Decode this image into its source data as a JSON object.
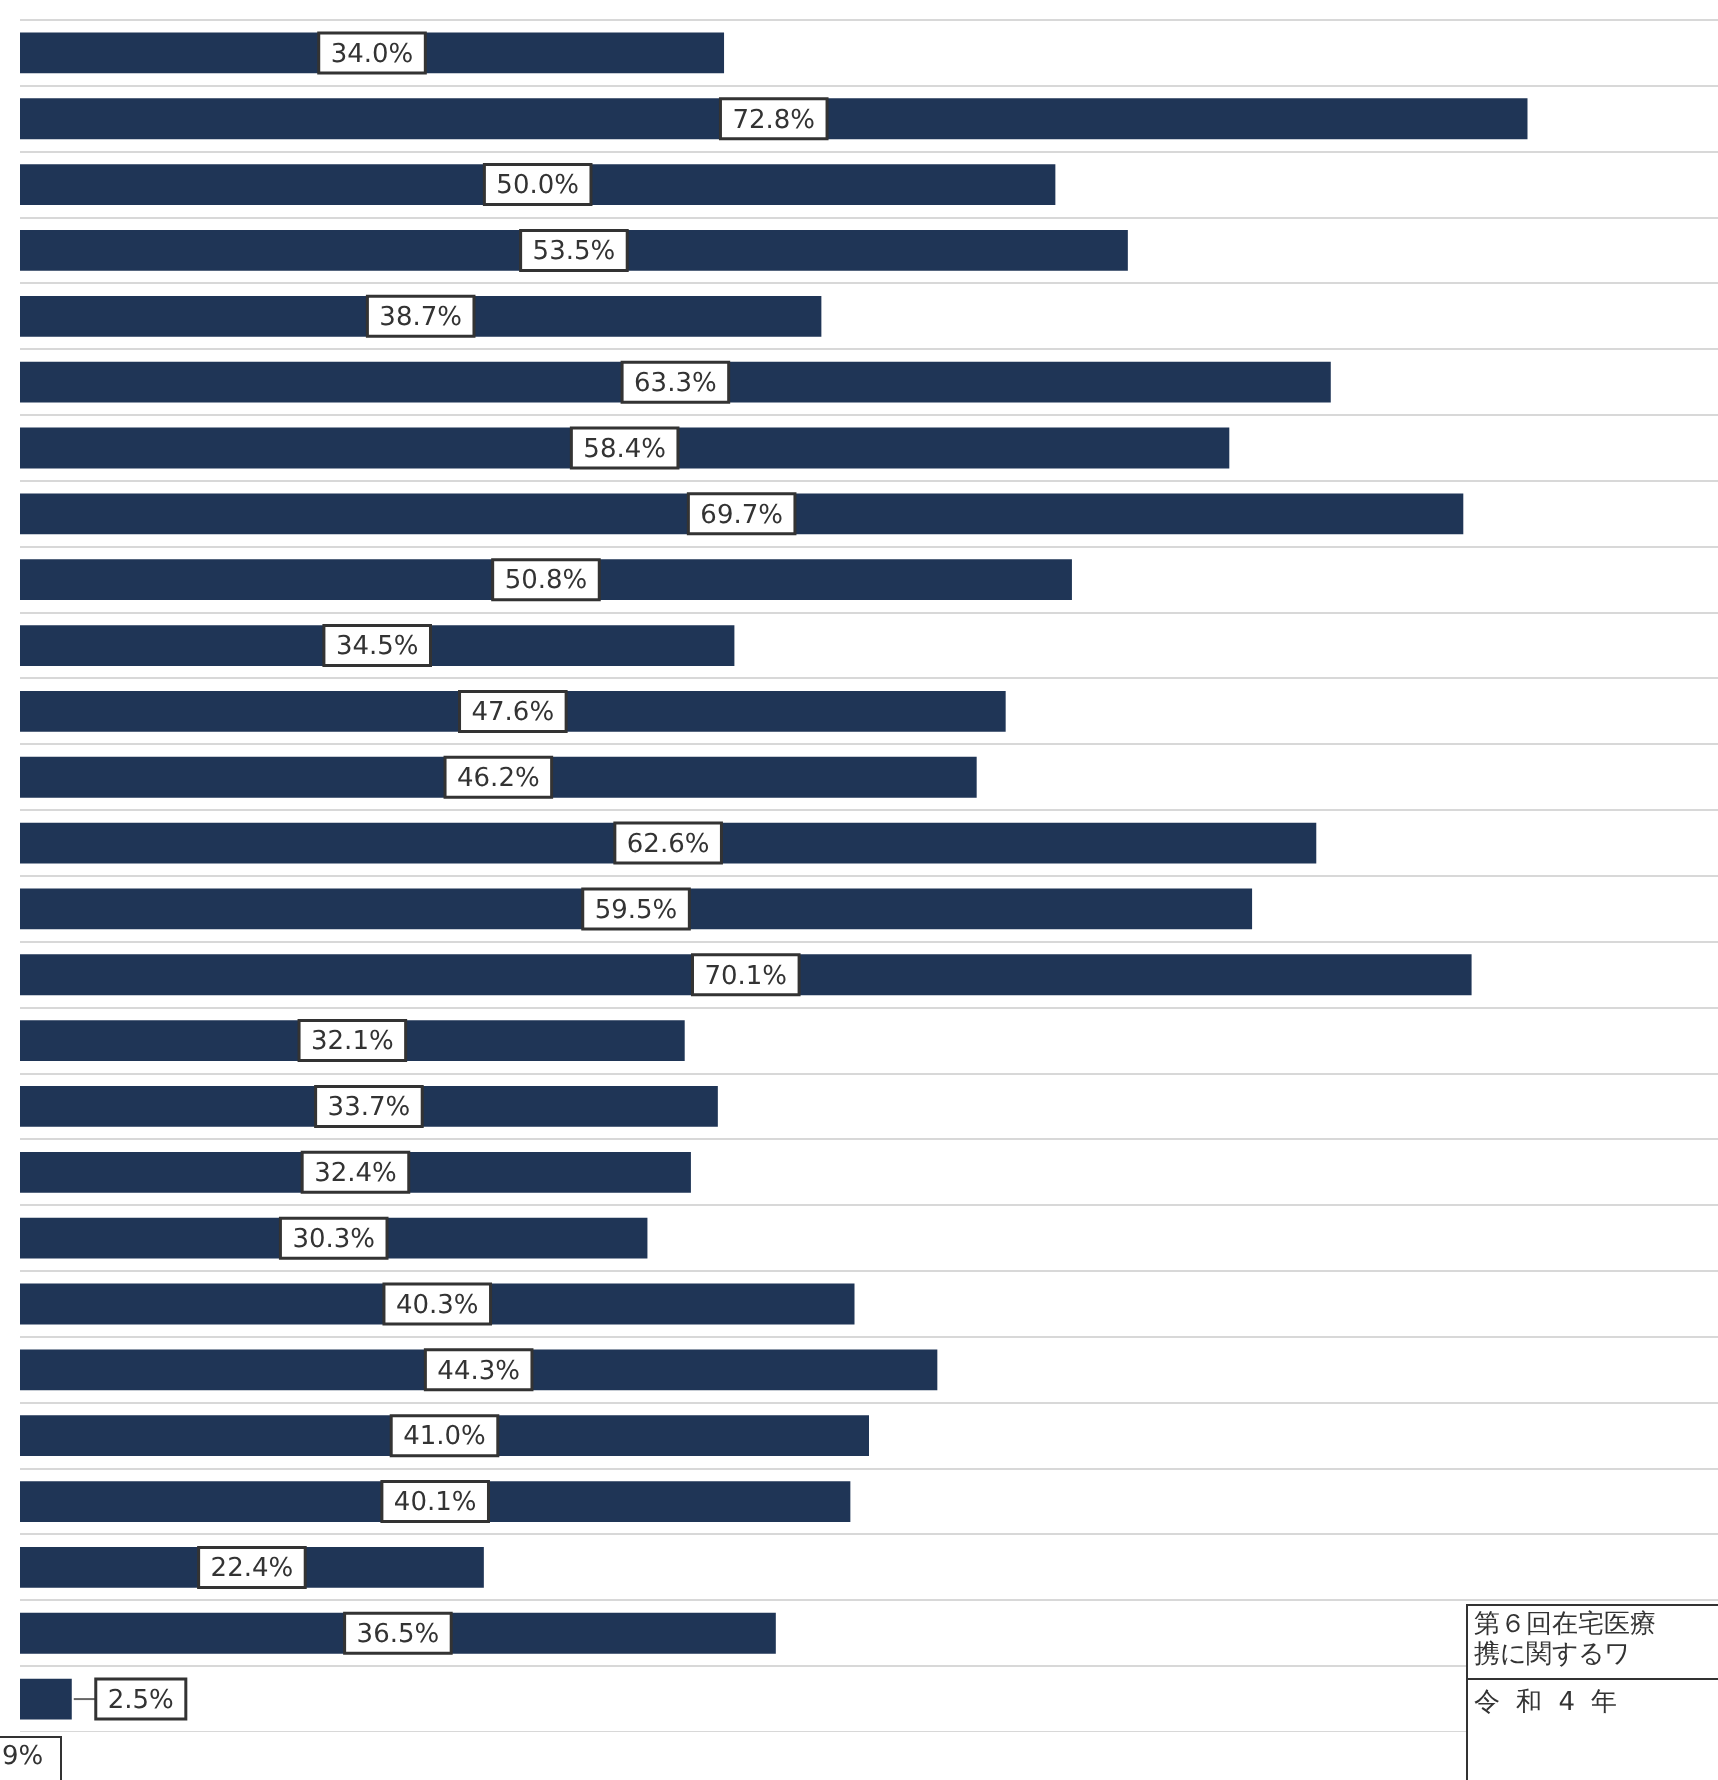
{
  "chart_data": {
    "type": "bar",
    "orientation": "horizontal",
    "categories": [
      null,
      null,
      null,
      null,
      null,
      null,
      null,
      null,
      null,
      null,
      null,
      null,
      null,
      null,
      null,
      null,
      null,
      null,
      null,
      null,
      null,
      null,
      null,
      null,
      null,
      null
    ],
    "values": [
      34.0,
      72.8,
      50.0,
      53.5,
      38.7,
      63.3,
      58.4,
      69.7,
      50.8,
      34.5,
      47.6,
      46.2,
      62.6,
      59.5,
      70.1,
      32.1,
      33.7,
      32.4,
      30.3,
      40.3,
      44.3,
      41.0,
      40.1,
      22.4,
      36.5,
      2.5
    ],
    "value_labels": [
      "34.0%",
      "72.8%",
      "50.0%",
      "53.5%",
      "38.7%",
      "63.3%",
      "58.4%",
      "69.7%",
      "50.8%",
      "34.5%",
      "47.6%",
      "46.2%",
      "62.6%",
      "59.5%",
      "70.1%",
      "32.1%",
      "33.7%",
      "32.4%",
      "30.3%",
      "40.3%",
      "44.3%",
      "41.0%",
      "40.1%",
      "22.4%",
      "36.5%",
      "2.5%"
    ],
    "color": "#1f3556",
    "xlim": [
      0,
      82
    ],
    "grid": "y",
    "tick_labels": false,
    "annotations": [
      "9%",
      "第６回在宅医療",
      "携に関するワ",
      "令 和 4 年"
    ]
  }
}
